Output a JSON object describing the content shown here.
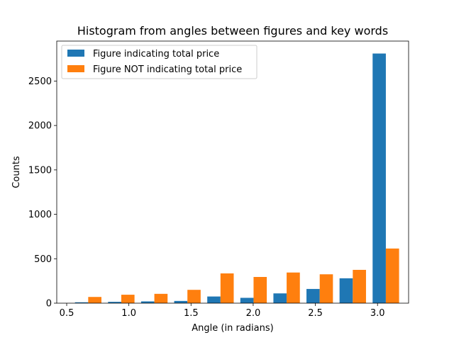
{
  "chart_data": {
    "type": "bar",
    "title": "Histogram from angles between figures and key words",
    "xlabel": "Angle (in radians)",
    "ylabel": "Counts",
    "xlim": [
      0.42,
      3.25
    ],
    "ylim": [
      0,
      2950
    ],
    "xticks": [
      0.5,
      1.0,
      1.5,
      2.0,
      2.5,
      3.0
    ],
    "xtick_labels": [
      "0.5",
      "1.0",
      "1.5",
      "2.0",
      "2.5",
      "3.0"
    ],
    "yticks": [
      0,
      500,
      1000,
      1500,
      2000,
      2500
    ],
    "ytick_labels": [
      "0",
      "500",
      "1000",
      "1500",
      "2000",
      "2500"
    ],
    "bin_edges": [
      0.54,
      0.806,
      1.072,
      1.338,
      1.604,
      1.87,
      2.136,
      2.402,
      2.668,
      2.934,
      3.2
    ],
    "grid": false,
    "legend_position": "top-left",
    "series": [
      {
        "name": "Figure indicating total price",
        "color": "#1f77b4",
        "values": [
          10,
          15,
          20,
          25,
          75,
          60,
          110,
          160,
          280,
          2810
        ]
      },
      {
        "name": "Figure NOT indicating total price",
        "color": "#ff7f0e",
        "values": [
          70,
          95,
          105,
          150,
          335,
          295,
          345,
          325,
          375,
          615
        ]
      }
    ]
  }
}
